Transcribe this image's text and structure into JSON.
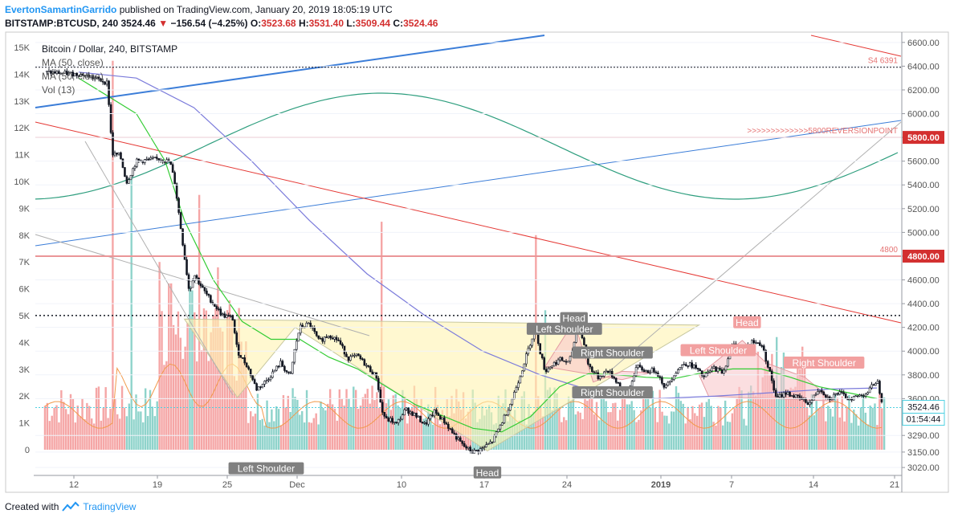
{
  "header": {
    "author": "EvertonSamartinGarrido",
    "published": " published on TradingView.com, January 20, 2019 18:05:19 UTC",
    "symbol": "BITSTAMP:BTCUSD, 240",
    "last": "3524.46",
    "change": "−156.54 (−4.25%)",
    "ohlc": {
      "o_label": "O:",
      "o": "3523.68",
      "h_label": "H:",
      "h": "3531.40",
      "l_label": "L:",
      "l": "3509.44",
      "c_label": "C:",
      "c": "3524.46"
    }
  },
  "footer": {
    "created_with": "Created with",
    "brand": "TradingView"
  },
  "colors": {
    "up": "#26a69a",
    "down": "#ef5350",
    "vol_up": "#8fd3cb",
    "vol_down": "#f5a6a6",
    "ma_green": "#33cc33",
    "ma_blue": "#7b7bdb",
    "red_line": "#e53935",
    "sine": "#2e9e7e",
    "trend_blue": "#3b7dd8"
  },
  "chart_data": {
    "type": "candlestick",
    "title": "Bitcoin / Dollar, 240, BITSTAMP",
    "legend": [
      "MA (50, close)",
      "MA (50, close)",
      "Vol (13)"
    ],
    "x_ticks": [
      "12",
      "19",
      "25",
      "Dec",
      "10",
      "17",
      "24",
      "2019",
      "7",
      "14",
      "21"
    ],
    "price_axis_ticks": [
      6600,
      6400,
      6200,
      6000,
      5800,
      5600,
      5400,
      5200,
      5000,
      4800,
      4600,
      4400,
      4200,
      4000,
      3800,
      3600,
      3290,
      3150,
      3020
    ],
    "left_axis_ticks": [
      "15K",
      "14K",
      "13K",
      "12K",
      "11K",
      "10K",
      "9K",
      "8K",
      "7K",
      "6K",
      "5K",
      "4K",
      "3K",
      "2K",
      "1K",
      "0"
    ],
    "price_range": [
      2960,
      6680
    ],
    "volume_range": [
      0,
      15500
    ],
    "price_path": [
      [
        1,
        6350
      ],
      [
        5,
        6330
      ],
      [
        7.5,
        6260
      ],
      [
        8,
        5660
      ],
      [
        8.8,
        5650
      ],
      [
        9.5,
        5420
      ],
      [
        10.5,
        5600
      ],
      [
        13,
        5620
      ],
      [
        14,
        5590
      ],
      [
        14.5,
        5420
      ],
      [
        15.5,
        4800
      ],
      [
        16,
        4500
      ],
      [
        16.5,
        4650
      ],
      [
        17.5,
        4510
      ],
      [
        18.5,
        4400
      ],
      [
        19.5,
        4300
      ],
      [
        20.5,
        4280
      ],
      [
        21,
        4000
      ],
      [
        22,
        3880
      ],
      [
        23,
        3680
      ],
      [
        24,
        3750
      ],
      [
        25.5,
        3900
      ],
      [
        26.5,
        3780
      ],
      [
        27,
        4030
      ],
      [
        27.5,
        4200
      ],
      [
        28.5,
        4230
      ],
      [
        29.5,
        4080
      ],
      [
        30.5,
        4140
      ],
      [
        31.5,
        4090
      ],
      [
        32.5,
        3940
      ],
      [
        33.5,
        3960
      ],
      [
        34.5,
        3870
      ],
      [
        35.5,
        3780
      ],
      [
        36,
        3500
      ],
      [
        36.5,
        3420
      ],
      [
        37,
        3420
      ],
      [
        37.5,
        3380
      ],
      [
        38.5,
        3510
      ],
      [
        39.5,
        3460
      ],
      [
        40.5,
        3380
      ],
      [
        41.5,
        3490
      ],
      [
        42.5,
        3410
      ],
      [
        43.5,
        3300
      ],
      [
        44.5,
        3200
      ],
      [
        45.5,
        3150
      ],
      [
        46.5,
        3180
      ],
      [
        47.5,
        3240
      ],
      [
        48.5,
        3400
      ],
      [
        49.5,
        3580
      ],
      [
        50.5,
        3820
      ],
      [
        51.5,
        4080
      ],
      [
        52,
        4190
      ],
      [
        52.5,
        3990
      ],
      [
        53,
        3830
      ],
      [
        53.5,
        3870
      ],
      [
        54.5,
        3930
      ],
      [
        55.5,
        3900
      ],
      [
        56,
        4070
      ],
      [
        56.5,
        4250
      ],
      [
        57.5,
        3880
      ],
      [
        58.5,
        3780
      ],
      [
        59.5,
        3840
      ],
      [
        60.5,
        3740
      ],
      [
        61.5,
        3620
      ],
      [
        62.5,
        3870
      ],
      [
        63.5,
        3830
      ],
      [
        64.5,
        3840
      ],
      [
        65.5,
        3690
      ],
      [
        66.5,
        3820
      ],
      [
        67.5,
        3900
      ],
      [
        68.5,
        3870
      ],
      [
        69.5,
        3780
      ],
      [
        70.5,
        3860
      ],
      [
        71.5,
        3820
      ],
      [
        72.5,
        4060
      ],
      [
        73.5,
        4000
      ],
      [
        74.5,
        4080
      ],
      [
        75.5,
        4060
      ],
      [
        76.5,
        3780
      ],
      [
        77,
        3600
      ],
      [
        78,
        3650
      ],
      [
        79.5,
        3600
      ],
      [
        80.5,
        3560
      ],
      [
        81.5,
        3690
      ],
      [
        82.5,
        3600
      ],
      [
        83.5,
        3650
      ],
      [
        84.5,
        3600
      ],
      [
        85.5,
        3620
      ],
      [
        86.5,
        3650
      ],
      [
        87.5,
        3760
      ],
      [
        88.2,
        3520
      ]
    ],
    "ma_green": [
      [
        4.5,
        6300
      ],
      [
        10.5,
        6000
      ],
      [
        13.5,
        5600
      ],
      [
        15.5,
        5100
      ],
      [
        18.5,
        4600
      ],
      [
        21.5,
        4250
      ],
      [
        24.5,
        4100
      ],
      [
        27.5,
        4100
      ],
      [
        30.5,
        3950
      ],
      [
        33.5,
        3850
      ],
      [
        36.5,
        3700
      ],
      [
        39.5,
        3550
      ],
      [
        42.5,
        3450
      ],
      [
        45.5,
        3350
      ],
      [
        48.5,
        3320
      ],
      [
        51.5,
        3450
      ],
      [
        54.5,
        3700
      ],
      [
        57.5,
        3810
      ],
      [
        60.5,
        3800
      ],
      [
        63.5,
        3780
      ],
      [
        66.5,
        3770
      ],
      [
        69.5,
        3820
      ],
      [
        72.5,
        3850
      ],
      [
        75.5,
        3850
      ],
      [
        78.5,
        3780
      ],
      [
        81.5,
        3700
      ],
      [
        84.5,
        3650
      ],
      [
        87.5,
        3600
      ]
    ],
    "ma_blue": [
      [
        4.5,
        6350
      ],
      [
        10.5,
        6300
      ],
      [
        16.5,
        6050
      ],
      [
        22.5,
        5600
      ],
      [
        28.5,
        5100
      ],
      [
        34.5,
        4650
      ],
      [
        40.5,
        4300
      ],
      [
        46.5,
        4000
      ],
      [
        52.5,
        3800
      ],
      [
        58.5,
        3650
      ],
      [
        64.5,
        3600
      ],
      [
        70.5,
        3620
      ],
      [
        76.5,
        3650
      ],
      [
        82.5,
        3680
      ],
      [
        87.5,
        3690
      ]
    ],
    "resistance_levels": [
      {
        "price": 5800,
        "label": "5800.00",
        "note": ">>>>>>>>>>>>>5800REVERSIONPOINT"
      },
      {
        "price": 4800,
        "label": "4800.00",
        "note": "4800"
      },
      {
        "price": 6391,
        "label": "",
        "note": "S4  6391"
      }
    ],
    "current_price": {
      "value": "3524.46",
      "countdown": "01:54:44"
    },
    "patterns": [
      {
        "type": "inverse head and shoulders",
        "left_shoulder": "Left Shoulder",
        "head": "Head",
        "right_shoulder": "Left Shoulder"
      },
      {
        "type": "head and shoulders",
        "left_shoulder": "Right Shoulder",
        "head": "Head",
        "right_shoulder": "Right Shoulder"
      },
      {
        "type": "head and shoulders",
        "left_shoulder": "Left Shoulder",
        "head": "Head",
        "right_shoulder": "Right Shoulder"
      }
    ]
  }
}
